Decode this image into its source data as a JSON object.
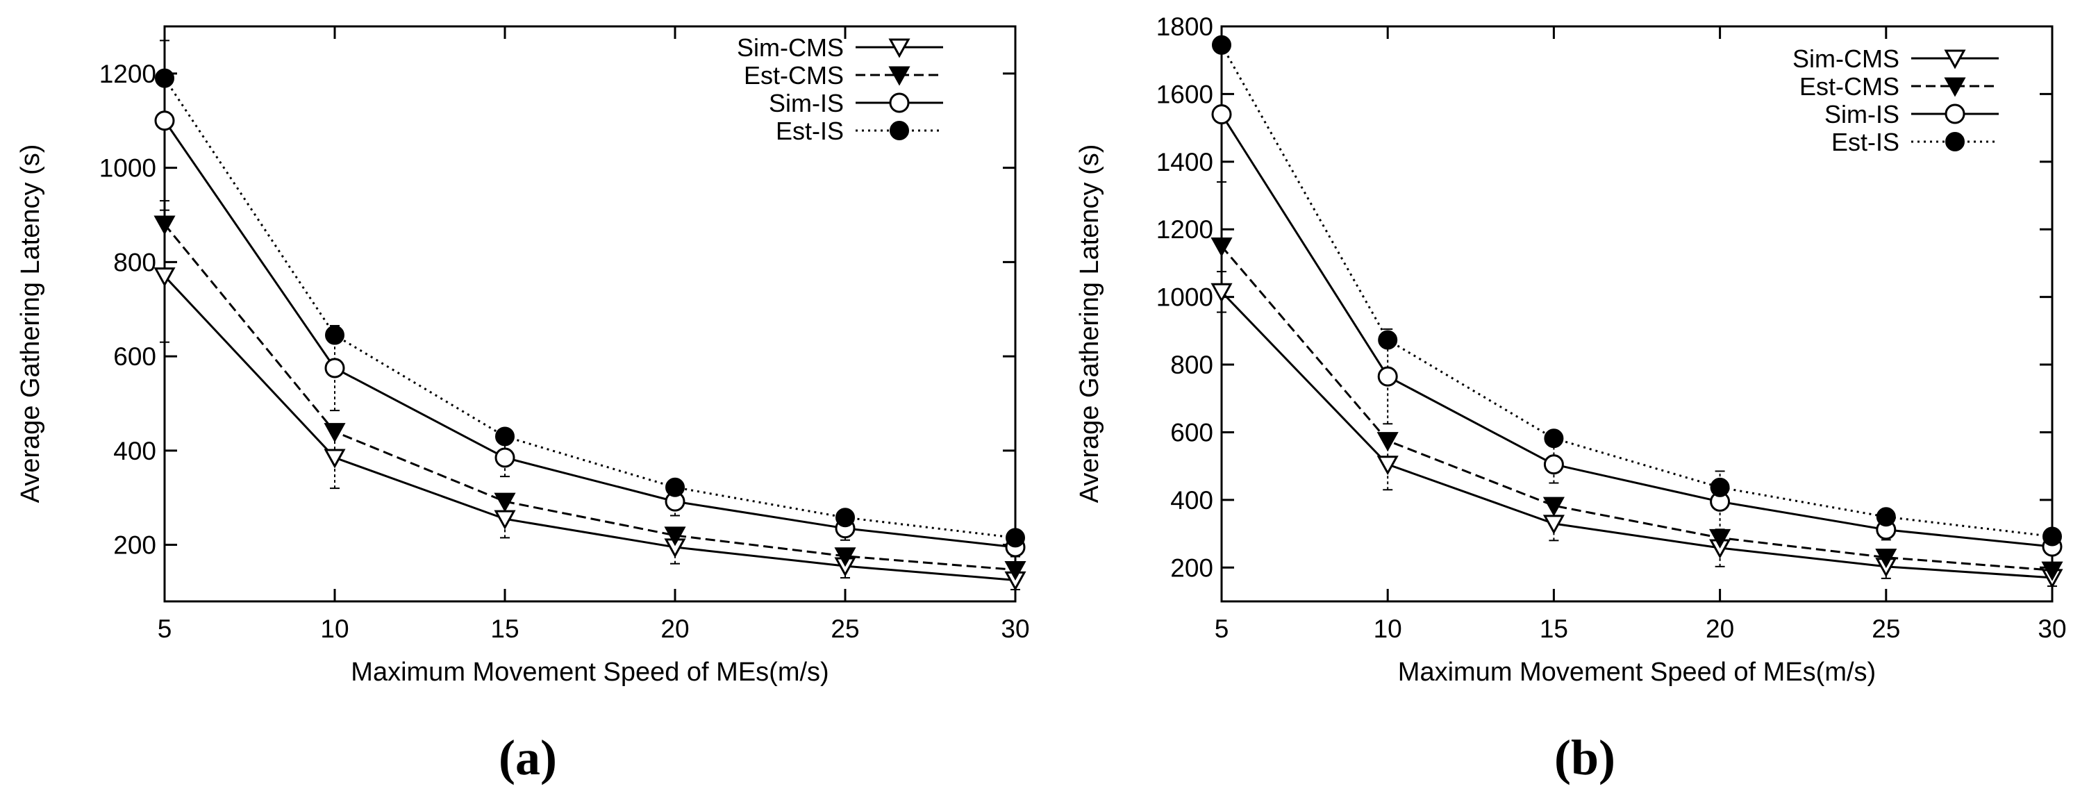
{
  "chart_data": [
    {
      "type": "line",
      "panel_label": "(a)",
      "xlabel": "Maximum Movement Speed of MEs(m/s)",
      "ylabel": "Average Gathering Latency (s)",
      "x": [
        5,
        10,
        15,
        20,
        25,
        30
      ],
      "xlim": [
        5,
        30
      ],
      "ylim": [
        80,
        1300
      ],
      "xticks": [
        "5",
        "10",
        "15",
        "20",
        "25",
        "30"
      ],
      "yticks": [
        "200",
        "400",
        "600",
        "800",
        "1000",
        "1200"
      ],
      "legend_position": "top-right",
      "series": [
        {
          "name": "Sim-CMS",
          "style": "solid",
          "marker": "open-triangle-down",
          "values": [
            770,
            385,
            255,
            195,
            155,
            125
          ],
          "err": [
            140,
            65,
            40,
            35,
            25,
            20
          ]
        },
        {
          "name": "Est-CMS",
          "style": "dashed",
          "marker": "filled-triangle-down",
          "values": [
            880,
            440,
            292,
            220,
            176,
            147
          ]
        },
        {
          "name": "Sim-IS",
          "style": "solid",
          "marker": "open-circle",
          "values": [
            1100,
            575,
            385,
            292,
            235,
            195
          ],
          "err": [
            170,
            90,
            40,
            30,
            25,
            20
          ]
        },
        {
          "name": "Est-IS",
          "style": "dotted",
          "marker": "filled-circle",
          "values": [
            1190,
            645,
            430,
            322,
            258,
            215
          ]
        }
      ]
    },
    {
      "type": "line",
      "panel_label": "(b)",
      "xlabel": "Maximum Movement Speed of MEs(m/s)",
      "ylabel": "Average Gathering Latency (s)",
      "x": [
        5,
        10,
        15,
        20,
        25,
        30
      ],
      "xlim": [
        5,
        30
      ],
      "ylim": [
        100,
        1800
      ],
      "xticks": [
        "5",
        "10",
        "15",
        "20",
        "25",
        "30"
      ],
      "yticks": [
        "200",
        "400",
        "600",
        "800",
        "1000",
        "1200",
        "1400",
        "1600",
        "1800"
      ],
      "legend_position": "top-right",
      "series": [
        {
          "name": "Sim-CMS",
          "style": "solid",
          "marker": "open-triangle-down",
          "values": [
            1015,
            505,
            330,
            258,
            203,
            170
          ],
          "err": [
            60,
            75,
            50,
            55,
            35,
            25
          ]
        },
        {
          "name": "Est-CMS",
          "style": "dashed",
          "marker": "filled-triangle-down",
          "values": [
            1150,
            575,
            383,
            288,
            230,
            192
          ]
        },
        {
          "name": "Sim-IS",
          "style": "solid",
          "marker": "open-circle",
          "values": [
            1540,
            765,
            505,
            395,
            312,
            262
          ],
          "err": [
            200,
            140,
            55,
            90,
            30,
            20
          ]
        },
        {
          "name": "Est-IS",
          "style": "dotted",
          "marker": "filled-circle",
          "values": [
            1745,
            873,
            582,
            437,
            350,
            292
          ]
        }
      ]
    }
  ]
}
